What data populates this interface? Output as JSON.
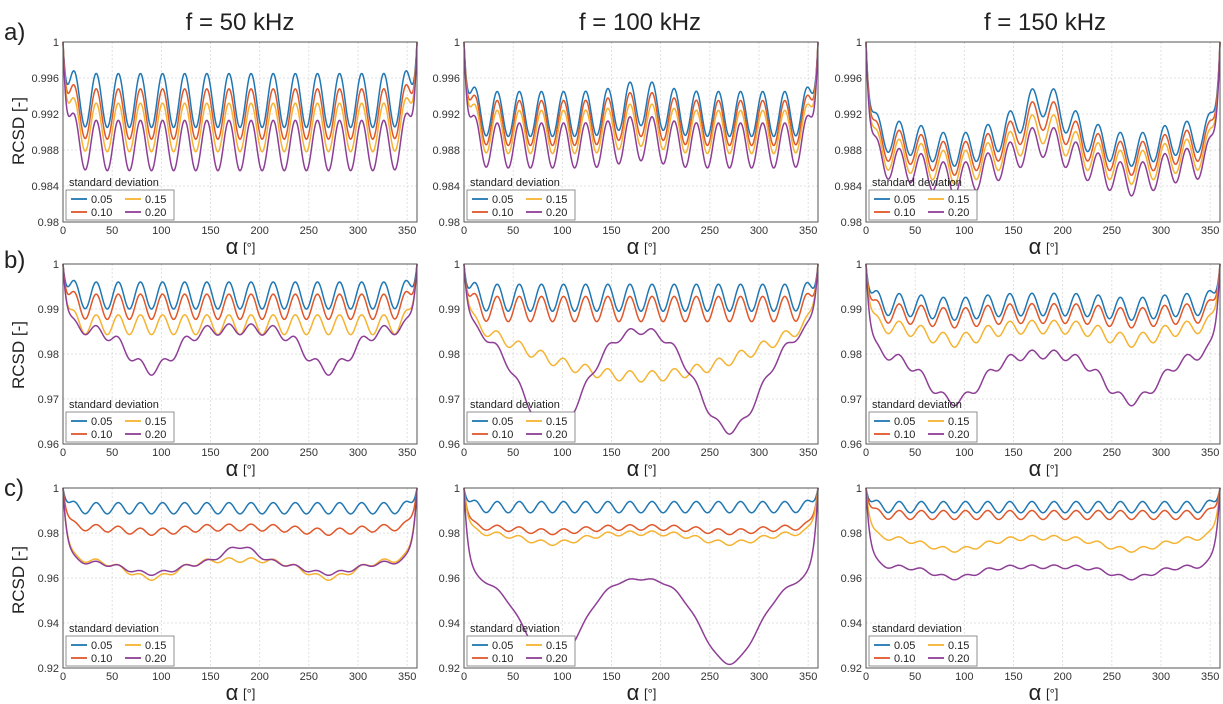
{
  "column_titles": [
    "f = 50 kHz",
    "f = 100 kHz",
    "f = 150 kHz"
  ],
  "row_labels": [
    "a)",
    "b)",
    "c)"
  ],
  "y_axis_label": "RCSD [-]",
  "x_axis_label": "α",
  "x_axis_unit": "[°]",
  "legend": {
    "title": "standard deviation",
    "entries": [
      "0.05",
      "0.15",
      "0.10",
      "0.20"
    ]
  },
  "series_colors": {
    "0.05": "#1f77b4",
    "0.10": "#e0572a",
    "0.15": "#f5b331",
    "0.20": "#8e3e96"
  },
  "chart_data": [
    {
      "type": "line",
      "row": "a",
      "column": "f = 50 kHz",
      "xlabel": "α [°]",
      "ylabel": "RCSD [-]",
      "xlim": [
        0,
        360
      ],
      "ylim": [
        0.98,
        1.0
      ],
      "grid": true,
      "legend_position": "bottom-left",
      "xticks": [
        0,
        50,
        100,
        150,
        200,
        250,
        300,
        350
      ],
      "yticks": [
        0.98,
        0.984,
        0.988,
        0.992,
        0.996,
        1.0
      ],
      "ytick_labels": [
        "0.98",
        "0.984",
        "0.988",
        "0.992",
        "0.996",
        "1"
      ],
      "series": [
        {
          "name": "0.05",
          "edge": 1.0,
          "base": 0.9935,
          "amp": 0.003,
          "periods": 16,
          "dip": 0,
          "dip_width": 40,
          "dip_centers": [],
          "hump": 0,
          "hump_width": 40,
          "hump_centers": [],
          "bowl": 0
        },
        {
          "name": "0.10",
          "edge": 1.0,
          "base": 0.992,
          "amp": 0.0028,
          "periods": 16,
          "dip": 0,
          "dip_width": 40,
          "dip_centers": [],
          "hump": 0,
          "hump_width": 40,
          "hump_centers": [],
          "bowl": 0
        },
        {
          "name": "0.15",
          "edge": 1.0,
          "base": 0.9905,
          "amp": 0.0027,
          "periods": 16,
          "dip": 0,
          "dip_width": 40,
          "dip_centers": [],
          "hump": 0,
          "hump_width": 40,
          "hump_centers": [],
          "bowl": 0
        },
        {
          "name": "0.20",
          "edge": 1.0,
          "base": 0.9885,
          "amp": 0.0028,
          "periods": 16,
          "dip": 0,
          "dip_width": 40,
          "dip_centers": [],
          "hump": 0,
          "hump_width": 40,
          "hump_centers": [],
          "bowl": 0
        }
      ]
    },
    {
      "type": "line",
      "row": "a",
      "column": "f = 100 kHz",
      "xlabel": "α [°]",
      "ylabel": "RCSD [-]",
      "xlim": [
        0,
        360
      ],
      "ylim": [
        0.98,
        1.0
      ],
      "grid": true,
      "legend_position": "bottom-left",
      "xticks": [
        0,
        50,
        100,
        150,
        200,
        250,
        300,
        350
      ],
      "yticks": [
        0.98,
        0.984,
        0.988,
        0.992,
        0.996,
        1.0
      ],
      "ytick_labels": [
        "0.98",
        "0.984",
        "0.988",
        "0.992",
        "0.996",
        "1"
      ],
      "series": [
        {
          "name": "0.05",
          "edge": 1.0,
          "base": 0.992,
          "amp": 0.0025,
          "periods": 16,
          "dip": 0,
          "dip_width": 40,
          "dip_centers": [],
          "hump": 0.0012,
          "hump_width": 30,
          "hump_centers": [
            180
          ],
          "bowl": 0
        },
        {
          "name": "0.10",
          "edge": 1.0,
          "base": 0.991,
          "amp": 0.0025,
          "periods": 16,
          "dip": 0,
          "dip_width": 40,
          "dip_centers": [],
          "hump": 0.001,
          "hump_width": 30,
          "hump_centers": [
            180
          ],
          "bowl": 0
        },
        {
          "name": "0.15",
          "edge": 1.0,
          "base": 0.99,
          "amp": 0.0024,
          "periods": 16,
          "dip": 0,
          "dip_width": 40,
          "dip_centers": [],
          "hump": 0.0008,
          "hump_width": 30,
          "hump_centers": [
            180
          ],
          "bowl": 0
        },
        {
          "name": "0.20",
          "edge": 1.0,
          "base": 0.9885,
          "amp": 0.0025,
          "periods": 16,
          "dip": 0,
          "dip_width": 40,
          "dip_centers": [],
          "hump": 0.0008,
          "hump_width": 30,
          "hump_centers": [
            180
          ],
          "bowl": 0
        }
      ]
    },
    {
      "type": "line",
      "row": "a",
      "column": "f = 150 kHz",
      "xlabel": "α [°]",
      "ylabel": "RCSD [-]",
      "xlim": [
        0,
        360
      ],
      "ylim": [
        0.98,
        1.0
      ],
      "grid": true,
      "legend_position": "bottom-left",
      "xticks": [
        0,
        50,
        100,
        150,
        200,
        250,
        300,
        350
      ],
      "yticks": [
        0.98,
        0.984,
        0.988,
        0.992,
        0.996,
        1.0
      ],
      "ytick_labels": [
        "0.98",
        "0.984",
        "0.988",
        "0.992",
        "0.996",
        "1"
      ],
      "series": [
        {
          "name": "0.05",
          "edge": 1.0,
          "base": 0.9895,
          "amp": 0.0018,
          "periods": 16,
          "dip": 0.0015,
          "dip_width": 35,
          "dip_centers": [
            90,
            270
          ],
          "hump": 0.004,
          "hump_width": 30,
          "hump_centers": [
            180
          ],
          "bowl": 0
        },
        {
          "name": "0.10",
          "edge": 1.0,
          "base": 0.9885,
          "amp": 0.0018,
          "periods": 16,
          "dip": 0.0015,
          "dip_width": 35,
          "dip_centers": [
            90,
            270
          ],
          "hump": 0.0035,
          "hump_width": 30,
          "hump_centers": [
            180
          ],
          "bowl": 0
        },
        {
          "name": "0.15",
          "edge": 1.0,
          "base": 0.9875,
          "amp": 0.0018,
          "periods": 16,
          "dip": 0.0015,
          "dip_width": 35,
          "dip_centers": [
            90,
            270
          ],
          "hump": 0.003,
          "hump_width": 30,
          "hump_centers": [
            180
          ],
          "bowl": 0
        },
        {
          "name": "0.20",
          "edge": 1.0,
          "base": 0.9865,
          "amp": 0.0018,
          "periods": 16,
          "dip": 0.0018,
          "dip_width": 35,
          "dip_centers": [
            90,
            270
          ],
          "hump": 0.0025,
          "hump_width": 30,
          "hump_centers": [
            180
          ],
          "bowl": 0
        }
      ]
    },
    {
      "type": "line",
      "row": "b",
      "column": "f = 50 kHz",
      "xlabel": "α [°]",
      "ylabel": "RCSD [-]",
      "xlim": [
        0,
        360
      ],
      "ylim": [
        0.96,
        1.0
      ],
      "grid": true,
      "legend_position": "bottom-left",
      "xticks": [
        0,
        50,
        100,
        150,
        200,
        250,
        300,
        350
      ],
      "yticks": [
        0.96,
        0.97,
        0.98,
        0.99,
        1.0
      ],
      "ytick_labels": [
        "0.96",
        "0.97",
        "0.98",
        "0.99",
        "1"
      ],
      "series": [
        {
          "name": "0.05",
          "edge": 1.0,
          "base": 0.993,
          "amp": 0.003,
          "periods": 16,
          "dip": 0,
          "dip_width": 40,
          "dip_centers": [],
          "hump": 0,
          "hump_width": 40,
          "hump_centers": [],
          "bowl": 0
        },
        {
          "name": "0.10",
          "edge": 1.0,
          "base": 0.9905,
          "amp": 0.0028,
          "periods": 16,
          "dip": 0,
          "dip_width": 40,
          "dip_centers": [],
          "hump": 0,
          "hump_width": 40,
          "hump_centers": [],
          "bowl": 0
        },
        {
          "name": "0.15",
          "edge": 1.0,
          "base": 0.9865,
          "amp": 0.0022,
          "periods": 16,
          "dip": 0,
          "dip_width": 40,
          "dip_centers": [],
          "hump": 0,
          "hump_width": 40,
          "hump_centers": [],
          "bowl": 0
        },
        {
          "name": "0.20",
          "edge": 1.0,
          "base": 0.9855,
          "amp": 0.0012,
          "periods": 16,
          "dip": 0.009,
          "dip_width": 32,
          "dip_centers": [
            90,
            270
          ],
          "hump": 0,
          "hump_width": 40,
          "hump_centers": [],
          "bowl": 0
        }
      ]
    },
    {
      "type": "line",
      "row": "b",
      "column": "f = 100 kHz",
      "xlabel": "α [°]",
      "ylabel": "RCSD [-]",
      "xlim": [
        0,
        360
      ],
      "ylim": [
        0.96,
        1.0
      ],
      "grid": true,
      "legend_position": "bottom-left",
      "xticks": [
        0,
        50,
        100,
        150,
        200,
        250,
        300,
        350
      ],
      "yticks": [
        0.96,
        0.97,
        0.98,
        0.99,
        1.0
      ],
      "ytick_labels": [
        "0.96",
        "0.97",
        "0.98",
        "0.99",
        "1"
      ],
      "series": [
        {
          "name": "0.05",
          "edge": 1.0,
          "base": 0.9925,
          "amp": 0.003,
          "periods": 16,
          "dip": 0,
          "dip_width": 40,
          "dip_centers": [],
          "hump": 0,
          "hump_width": 40,
          "hump_centers": [],
          "bowl": 0
        },
        {
          "name": "0.10",
          "edge": 1.0,
          "base": 0.99,
          "amp": 0.0028,
          "periods": 16,
          "dip": 0,
          "dip_width": 40,
          "dip_centers": [],
          "hump": 0,
          "hump_width": 40,
          "hump_centers": [],
          "bowl": 0
        },
        {
          "name": "0.15",
          "edge": 1.0,
          "base": 0.9875,
          "amp": 0.0012,
          "periods": 16,
          "dip": 0,
          "dip_width": 40,
          "dip_centers": [],
          "hump": 0,
          "hump_width": 40,
          "hump_centers": [],
          "bowl": 0.0125
        },
        {
          "name": "0.20",
          "edge": 1.0,
          "base": 0.986,
          "amp": 0.0008,
          "periods": 16,
          "dip": 0.023,
          "dip_width": 45,
          "dip_centers": [
            90,
            270
          ],
          "hump": 0,
          "hump_width": 40,
          "hump_centers": [],
          "bowl": 0
        }
      ]
    },
    {
      "type": "line",
      "row": "b",
      "column": "f = 150 kHz",
      "xlabel": "α [°]",
      "ylabel": "RCSD [-]",
      "xlim": [
        0,
        360
      ],
      "ylim": [
        0.96,
        1.0
      ],
      "grid": true,
      "legend_position": "bottom-left",
      "xticks": [
        0,
        50,
        100,
        150,
        200,
        250,
        300,
        350
      ],
      "yticks": [
        0.96,
        0.97,
        0.98,
        0.99,
        1.0
      ],
      "ytick_labels": [
        "0.96",
        "0.97",
        "0.98",
        "0.99",
        "1"
      ],
      "series": [
        {
          "name": "0.05",
          "edge": 1.0,
          "base": 0.991,
          "amp": 0.0025,
          "periods": 16,
          "dip": 0.001,
          "dip_width": 35,
          "dip_centers": [
            90,
            270
          ],
          "hump": 0,
          "hump_width": 40,
          "hump_centers": [],
          "bowl": 0
        },
        {
          "name": "0.10",
          "edge": 1.0,
          "base": 0.989,
          "amp": 0.0022,
          "periods": 16,
          "dip": 0.001,
          "dip_width": 35,
          "dip_centers": [
            90,
            270
          ],
          "hump": 0,
          "hump_width": 40,
          "hump_centers": [],
          "bowl": 0
        },
        {
          "name": "0.15",
          "edge": 1.0,
          "base": 0.986,
          "amp": 0.0015,
          "periods": 16,
          "dip": 0.003,
          "dip_width": 35,
          "dip_centers": [
            90,
            270
          ],
          "hump": 0,
          "hump_width": 40,
          "hump_centers": [],
          "bowl": 0
        },
        {
          "name": "0.20",
          "edge": 1.0,
          "base": 0.98,
          "amp": 0.001,
          "periods": 16,
          "dip": 0.0105,
          "dip_width": 38,
          "dip_centers": [
            90,
            270
          ],
          "hump": 0,
          "hump_width": 40,
          "hump_centers": [],
          "bowl": 0
        }
      ]
    },
    {
      "type": "line",
      "row": "c",
      "column": "f = 50 kHz",
      "xlabel": "α [°]",
      "ylabel": "RCSD [-]",
      "xlim": [
        0,
        360
      ],
      "ylim": [
        0.92,
        1.0
      ],
      "grid": true,
      "legend_position": "bottom-left",
      "xticks": [
        0,
        50,
        100,
        150,
        200,
        250,
        300,
        350
      ],
      "yticks": [
        0.92,
        0.94,
        0.96,
        0.98,
        1.0
      ],
      "ytick_labels": [
        "0.92",
        "0.94",
        "0.96",
        "0.98",
        "1"
      ],
      "series": [
        {
          "name": "0.05",
          "edge": 1.0,
          "base": 0.991,
          "amp": 0.0025,
          "periods": 16,
          "dip": 0,
          "dip_width": 40,
          "dip_centers": [],
          "hump": 0,
          "hump_width": 40,
          "hump_centers": [],
          "bowl": 0
        },
        {
          "name": "0.10",
          "edge": 1.0,
          "base": 0.9825,
          "amp": 0.0015,
          "periods": 16,
          "dip": 0.002,
          "dip_width": 40,
          "dip_centers": [
            90,
            270
          ],
          "hump": 0,
          "hump_width": 40,
          "hump_centers": [],
          "bowl": 0
        },
        {
          "name": "0.15",
          "edge": 1.0,
          "base": 0.968,
          "amp": 0.001,
          "periods": 16,
          "dip": 0.008,
          "dip_width": 35,
          "dip_centers": [
            90,
            270
          ],
          "hump": 0,
          "hump_width": 40,
          "hump_centers": [],
          "bowl": 0
        },
        {
          "name": "0.20",
          "edge": 1.0,
          "base": 0.967,
          "amp": 0.0008,
          "periods": 16,
          "dip": 0.005,
          "dip_width": 35,
          "dip_centers": [
            90,
            270
          ],
          "hump": 0.007,
          "hump_width": 22,
          "hump_centers": [
            180
          ],
          "bowl": 0
        }
      ]
    },
    {
      "type": "line",
      "row": "c",
      "column": "f = 100 kHz",
      "xlabel": "α [°]",
      "ylabel": "RCSD [-]",
      "xlim": [
        0,
        360
      ],
      "ylim": [
        0.92,
        1.0
      ],
      "grid": true,
      "legend_position": "bottom-left",
      "xticks": [
        0,
        50,
        100,
        150,
        200,
        250,
        300,
        350
      ],
      "yticks": [
        0.92,
        0.94,
        0.96,
        0.98,
        1.0
      ],
      "ytick_labels": [
        "0.92",
        "0.94",
        "0.96",
        "0.98",
        "1"
      ],
      "series": [
        {
          "name": "0.05",
          "edge": 1.0,
          "base": 0.9915,
          "amp": 0.0025,
          "periods": 16,
          "dip": 0,
          "dip_width": 40,
          "dip_centers": [],
          "hump": 0,
          "hump_width": 40,
          "hump_centers": [],
          "bowl": 0
        },
        {
          "name": "0.10",
          "edge": 1.0,
          "base": 0.9825,
          "amp": 0.0012,
          "periods": 16,
          "dip": 0.002,
          "dip_width": 40,
          "dip_centers": [
            90,
            270
          ],
          "hump": 0,
          "hump_width": 40,
          "hump_centers": [],
          "bowl": 0
        },
        {
          "name": "0.15",
          "edge": 1.0,
          "base": 0.98,
          "amp": 0.001,
          "periods": 16,
          "dip": 0.0045,
          "dip_width": 40,
          "dip_centers": [
            90,
            270
          ],
          "hump": 0,
          "hump_width": 40,
          "hump_centers": [],
          "bowl": 0
        },
        {
          "name": "0.20",
          "edge": 1.0,
          "base": 0.96,
          "amp": 0.0004,
          "periods": 16,
          "dip": 0.038,
          "dip_width": 40,
          "dip_centers": [
            90,
            270
          ],
          "hump": 0,
          "hump_width": 40,
          "hump_centers": [],
          "bowl": 0
        }
      ]
    },
    {
      "type": "line",
      "row": "c",
      "column": "f = 150 kHz",
      "xlabel": "α [°]",
      "ylabel": "RCSD [-]",
      "xlim": [
        0,
        360
      ],
      "ylim": [
        0.92,
        1.0
      ],
      "grid": true,
      "legend_position": "bottom-left",
      "xticks": [
        0,
        50,
        100,
        150,
        200,
        250,
        300,
        350
      ],
      "yticks": [
        0.92,
        0.94,
        0.96,
        0.98,
        1.0
      ],
      "ytick_labels": [
        "0.92",
        "0.94",
        "0.96",
        "0.98",
        "1"
      ],
      "series": [
        {
          "name": "0.05",
          "edge": 1.0,
          "base": 0.9915,
          "amp": 0.0025,
          "periods": 16,
          "dip": 0,
          "dip_width": 40,
          "dip_centers": [],
          "hump": 0,
          "hump_width": 40,
          "hump_centers": [],
          "bowl": 0
        },
        {
          "name": "0.10",
          "edge": 1.0,
          "base": 0.988,
          "amp": 0.002,
          "periods": 16,
          "dip": 0,
          "dip_width": 40,
          "dip_centers": [],
          "hump": 0,
          "hump_width": 40,
          "hump_centers": [],
          "bowl": 0
        },
        {
          "name": "0.15",
          "edge": 1.0,
          "base": 0.978,
          "amp": 0.001,
          "periods": 16,
          "dip": 0.0055,
          "dip_width": 40,
          "dip_centers": [
            90,
            270
          ],
          "hump": 0,
          "hump_width": 40,
          "hump_centers": [],
          "bowl": 0
        },
        {
          "name": "0.20",
          "edge": 1.0,
          "base": 0.965,
          "amp": 0.0008,
          "periods": 16,
          "dip": 0.005,
          "dip_width": 30,
          "dip_centers": [
            90,
            270
          ],
          "hump": 0,
          "hump_width": 40,
          "hump_centers": [],
          "bowl": 0
        }
      ]
    }
  ]
}
